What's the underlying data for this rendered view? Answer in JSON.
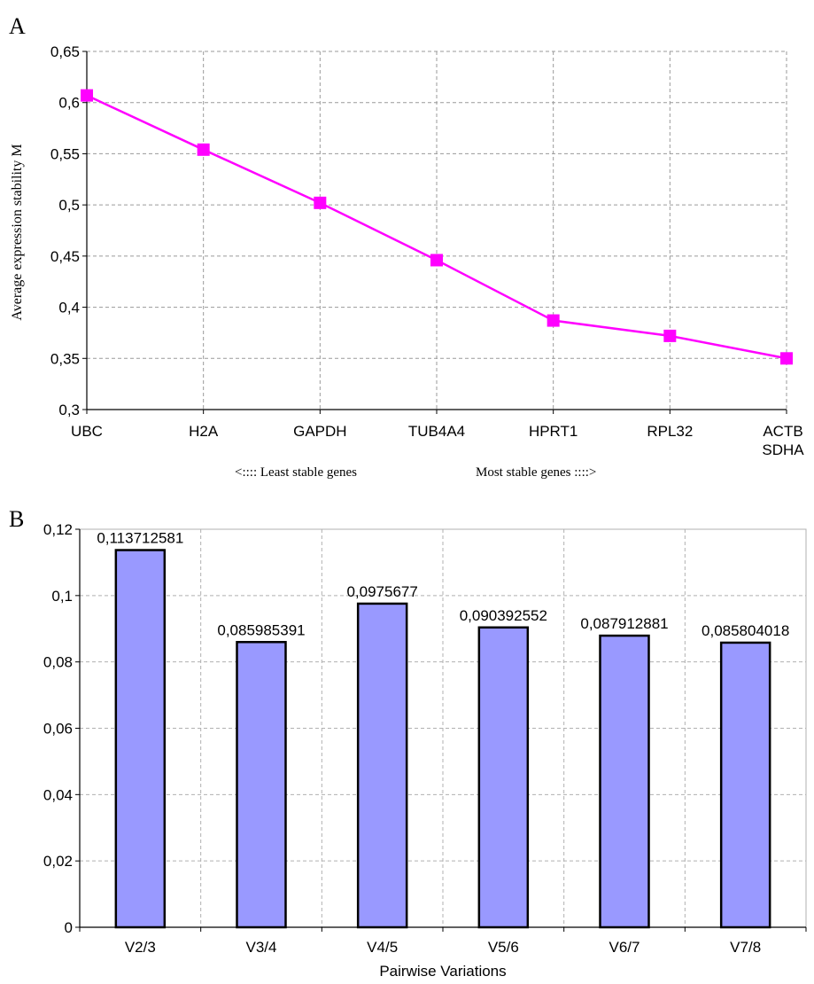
{
  "chart_data": [
    {
      "panel_label": "A",
      "type": "line",
      "categories": [
        "UBC",
        "H2A",
        "GAPDH",
        "TUB4A4",
        "HPRT1",
        "RPL32",
        "ACTB\nSDHA"
      ],
      "category_lines": [
        [
          "UBC"
        ],
        [
          "H2A"
        ],
        [
          "GAPDH"
        ],
        [
          "TUB4A4"
        ],
        [
          "HPRT1"
        ],
        [
          "RPL32"
        ],
        [
          "ACTB",
          "SDHA"
        ]
      ],
      "values": [
        0.607,
        0.554,
        0.502,
        0.446,
        0.387,
        0.372,
        0.35
      ],
      "ylabel": "Average expression stability M",
      "xlabel_left": "<::::   Least stable genes",
      "xlabel_right": "Most stable genes ::::>",
      "ylim": [
        0.3,
        0.65
      ],
      "yticks": [
        "0,3",
        "0,35",
        "0,4",
        "0,45",
        "0,5",
        "0,55",
        "0,6",
        "0,65"
      ],
      "grid": true,
      "series_color": "#ff00ff"
    },
    {
      "panel_label": "B",
      "type": "bar",
      "categories": [
        "V2/3",
        "V3/4",
        "V4/5",
        "V5/6",
        "V6/7",
        "V7/8"
      ],
      "values": [
        0.113712581,
        0.085985391,
        0.0975677,
        0.090392552,
        0.087912881,
        0.085804018
      ],
      "data_labels": [
        "0,113712581",
        "0,085985391",
        "0,0975677",
        "0,090392552",
        "0,087912881",
        "0,085804018"
      ],
      "xlabel": "Pairwise Variations",
      "ylim": [
        0,
        0.12
      ],
      "yticks": [
        "0",
        "0,02",
        "0,04",
        "0,06",
        "0,08",
        "0,1",
        "0,12"
      ],
      "grid": true,
      "bar_color": "#9999ff"
    }
  ]
}
